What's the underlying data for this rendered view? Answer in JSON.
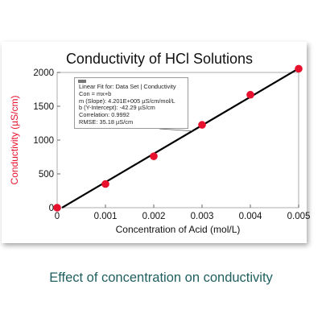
{
  "caption": "Effect of concentration on conductivity",
  "annotation": {
    "lines": [
      "Linear Fit for: Data Set | Conductivity",
      "Con = mx+b",
      "m (Slope): 4.201E+005 µS/cm/mol/L",
      "b (Y-Intercept): -42.29 µS/cm",
      "Correlation: 0.9992",
      "RMSE: 35.18 µS/cm"
    ]
  },
  "colors": {
    "points": "#e8112d",
    "fit_line": "#000000",
    "ylabel": "#e8112d",
    "caption": "#1f5f5f"
  },
  "chart_data": {
    "type": "scatter",
    "title": "Conductivity of HCl Solutions",
    "xlabel": "Concentration of Acid (mol/L)",
    "ylabel": "Conductivity (µS/cm)",
    "xlim": [
      0,
      0.005
    ],
    "ylim": [
      0,
      2000
    ],
    "xticks": [
      "0",
      "0.001",
      "0.002",
      "0.003",
      "0.004",
      "0.005"
    ],
    "yticks": [
      "0",
      "500",
      "1000",
      "1500",
      "2000"
    ],
    "grid": false,
    "series": [
      {
        "x": [
          0,
          0.001,
          0.002,
          0.003,
          0.004,
          0.005
        ],
        "y": [
          0,
          350,
          760,
          1225,
          1670,
          2055
        ]
      }
    ],
    "fit": {
      "slope": 420100,
      "intercept": -42.29
    }
  }
}
